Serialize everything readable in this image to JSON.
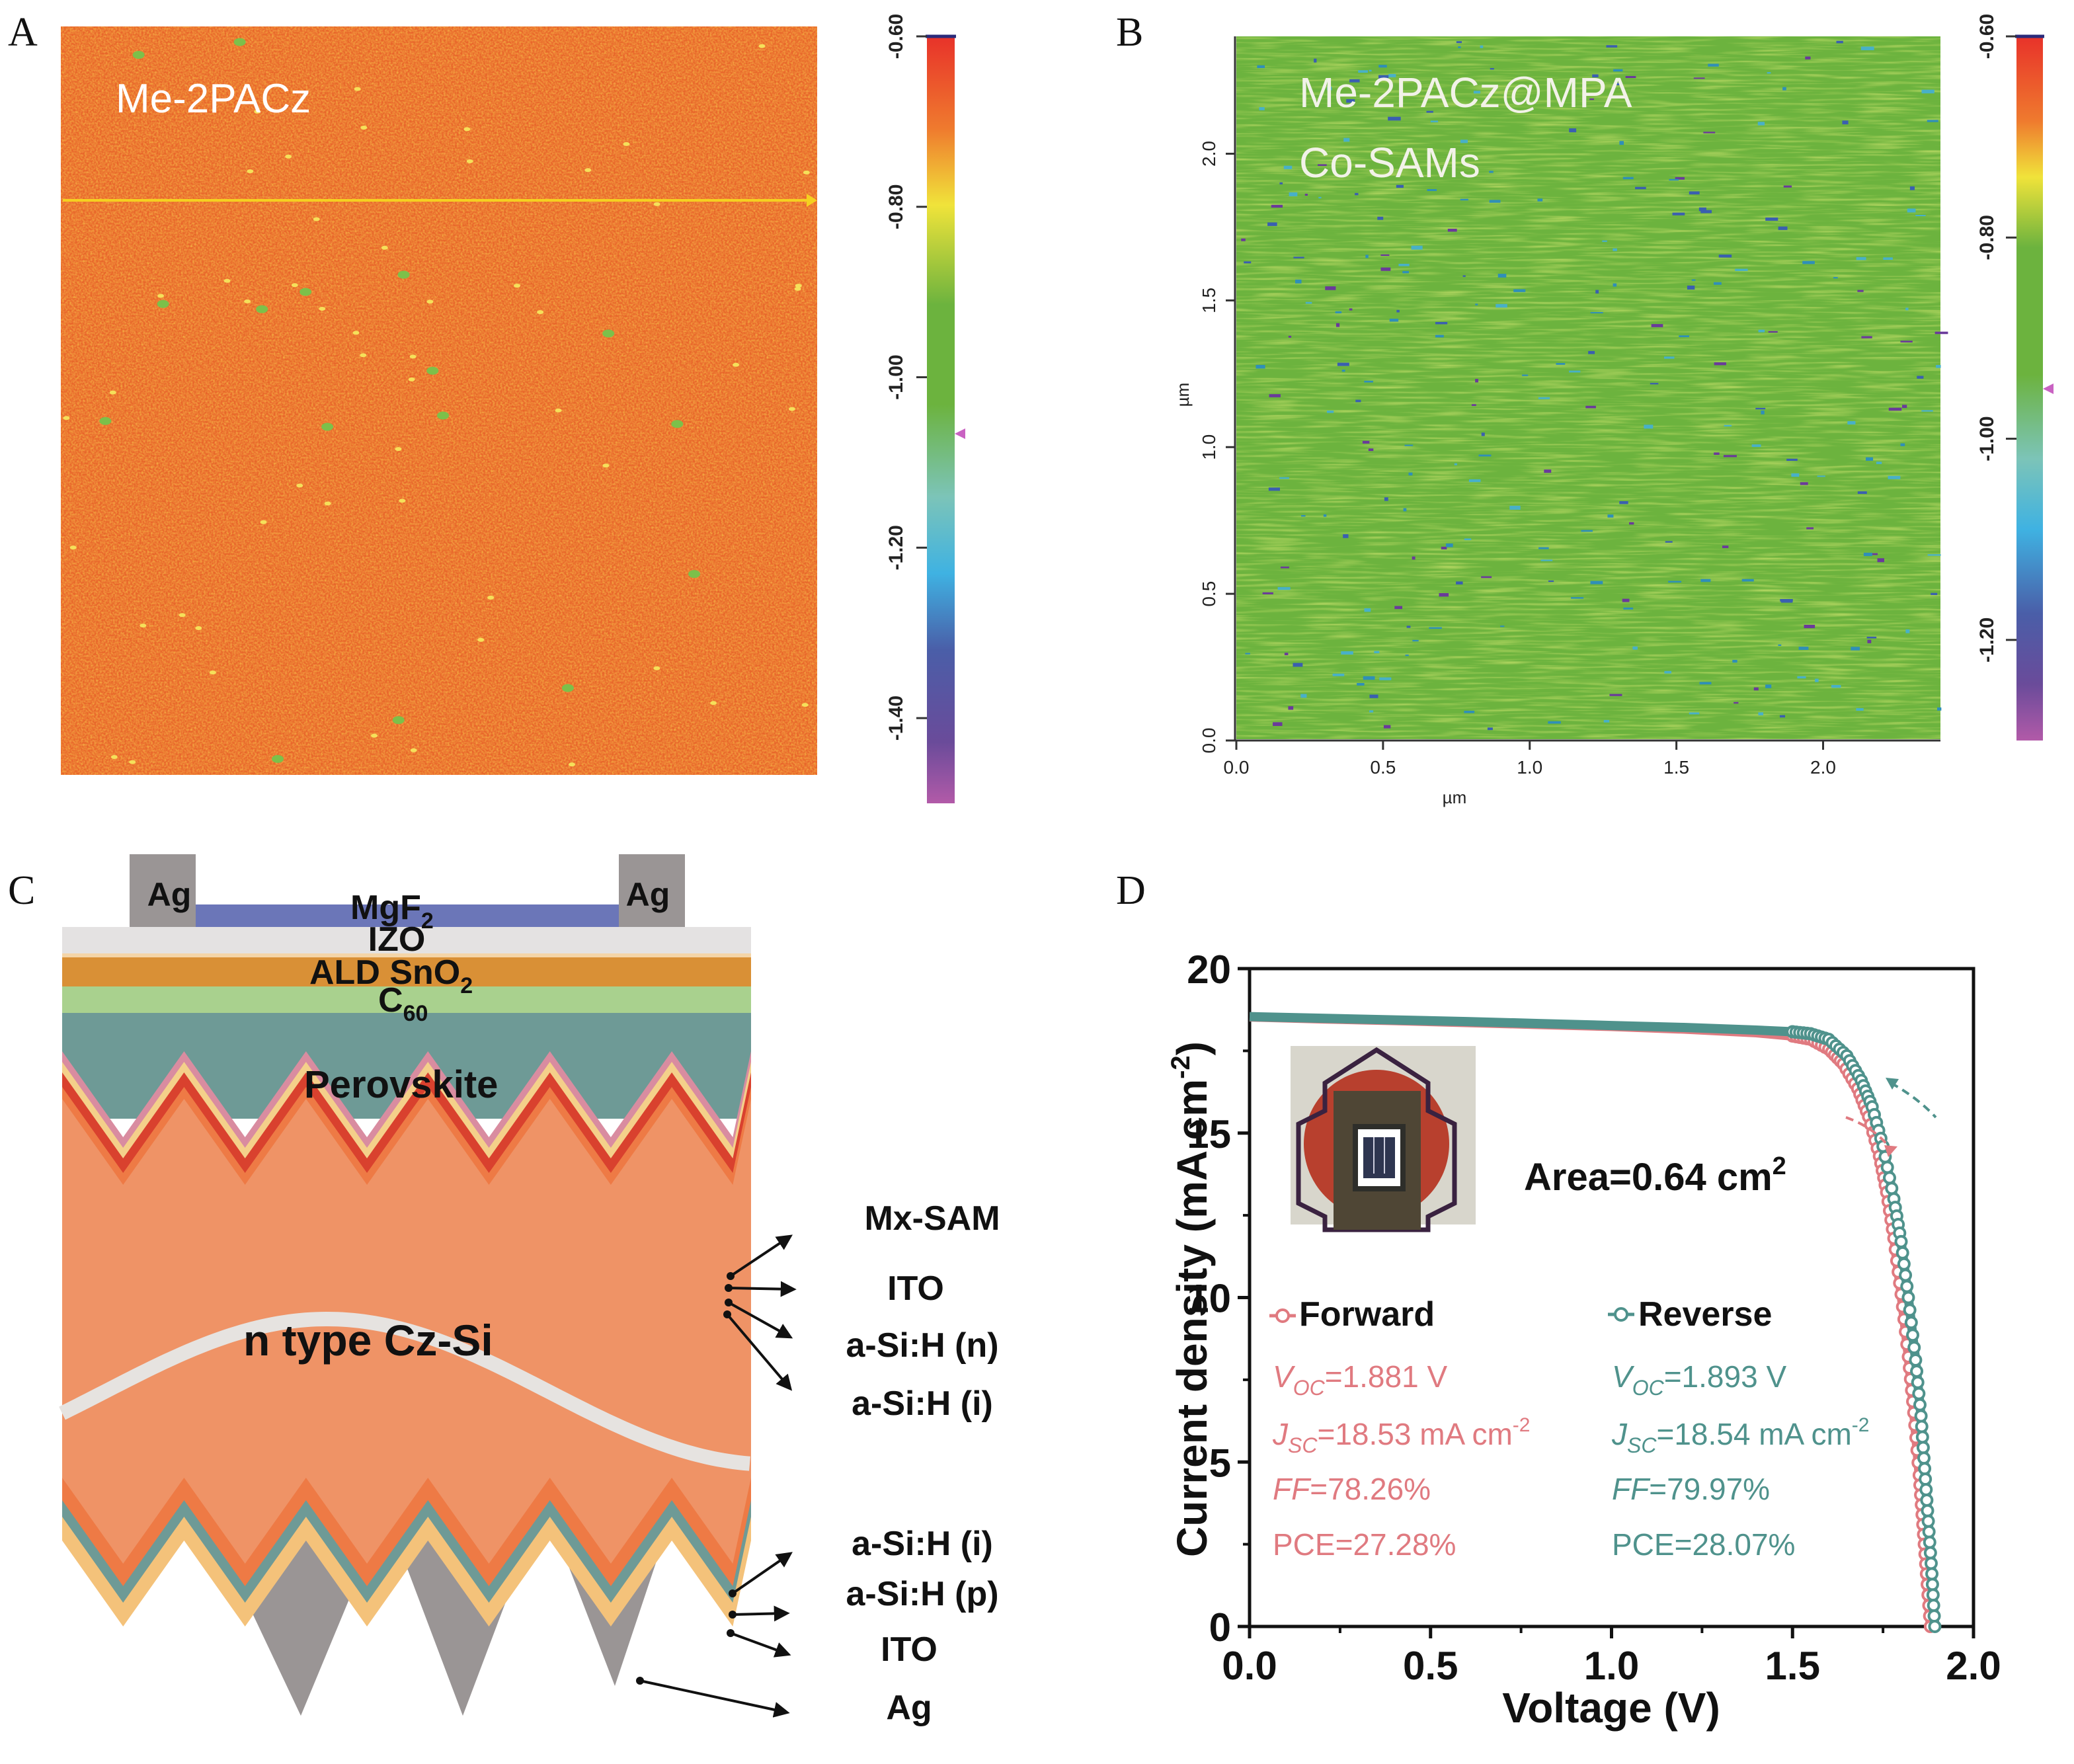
{
  "figure": {
    "panels": [
      {
        "id": "A",
        "type": "afm-potential-map",
        "label": "A",
        "sample_label": "Me-2PACz",
        "dominant_color": "#e8652a",
        "colorbar": {
          "ticks": [
            "-0.60",
            "-0.80",
            "-1.00",
            "-1.20",
            "-1.40"
          ],
          "range": [
            -0.6,
            -1.5
          ],
          "marker_value": -1.05,
          "marker_color": "#c962c2"
        },
        "line_profile_color": "#f5d020"
      },
      {
        "id": "B",
        "type": "afm-potential-map",
        "label": "B",
        "sample_label_line1": "Me-2PACz@MPA",
        "sample_label_line2": "Co-SAMs",
        "dominant_color": "#6cb33e",
        "x_axis": {
          "label": "µm",
          "ticks": [
            "0.0",
            "0.5",
            "1.0",
            "1.5",
            "2.0"
          ],
          "range": [
            0,
            2.4
          ]
        },
        "y_axis": {
          "label": "µm",
          "ticks": [
            "0.0",
            "0.5",
            "1.0",
            "1.5",
            "2.0"
          ],
          "range": [
            0,
            2.4
          ]
        },
        "colorbar": {
          "ticks": [
            "-0.60",
            "-0.80",
            "-1.00",
            "-1.20"
          ],
          "range": [
            -0.6,
            -1.3
          ],
          "marker_value": -0.95,
          "marker_color": "#c962c2"
        }
      },
      {
        "id": "C",
        "type": "device-schematic",
        "label": "C",
        "top_layers": {
          "ag_left": "Ag",
          "ag_right": "Ag",
          "mgf2": "MgF",
          "mgf2_sub": "2",
          "izo": "IZO",
          "sno2": "ALD SnO",
          "sno2_sub": "2",
          "c60": "C",
          "c60_sub": "60",
          "perovskite": "Perovskite",
          "silicon": "n type Cz-Si"
        },
        "front_callouts": [
          "Mx-SAM",
          "ITO",
          "a-Si:H (n)",
          "a-Si:H (i)"
        ],
        "rear_callouts": [
          "a-Si:H (i)",
          "a-Si:H (p)",
          "ITO",
          "Ag"
        ],
        "colors": {
          "ag": "#9a9595",
          "mgf2": "#6b76b8",
          "izo": "#e4e2e2",
          "sno2": "#d99036",
          "c60": "#a9d18e",
          "perovskite": "#6e9a96",
          "mx_sam": "#d98ca0",
          "ito_front": "#f4d08a",
          "asi_n": "#d9412e",
          "asi_i": "#ee7a45",
          "silicon": "#ef9366",
          "wave": "#e6e3e0",
          "asi_p": "#6e9a96",
          "ito_rear": "#f4c27a"
        }
      },
      {
        "id": "D",
        "type": "jv-curve",
        "label": "D",
        "area_label": "Area=0.64 cm",
        "area_sup": "2",
        "legend": {
          "forward": "Forward",
          "reverse": "Reverse"
        },
        "forward_params": {
          "voc_sym": "V",
          "voc_sub": "OC",
          "voc_val": "=1.881 V",
          "jsc_sym": "J",
          "jsc_sub": "SC",
          "jsc_val": "=18.53 mA cm",
          "jsc_sup": "-2",
          "ff": "FF",
          "ff_val": "=78.26%",
          "pce": "PCE=27.28%"
        },
        "reverse_params": {
          "voc_sym": "V",
          "voc_sub": "OC",
          "voc_val": "=1.893 V",
          "jsc_sym": "J",
          "jsc_sub": "SC",
          "jsc_val": "=18.54 mA cm",
          "jsc_sup": "-2",
          "ff": "FF",
          "ff_val": "=79.97%",
          "pce": "PCE=28.07%"
        }
      }
    ]
  },
  "chart_data": {
    "type": "line",
    "title": "",
    "xlabel": "Voltage (V)",
    "ylabel": "Current density (mA cm",
    "ylabel_sup": "-2",
    "ylabel_close": ")",
    "xlim": [
      0,
      2.0
    ],
    "ylim": [
      0,
      20
    ],
    "x_ticks": [
      "0.0",
      "0.5",
      "1.0",
      "1.5",
      "2.0"
    ],
    "y_ticks": [
      "0",
      "5",
      "10",
      "15",
      "20"
    ],
    "grid": false,
    "legend_position": "center-left",
    "series": [
      {
        "name": "Forward",
        "color": "#e07a80",
        "marker": "open-circle",
        "x": [
          0.0,
          0.2,
          0.4,
          0.6,
          0.8,
          1.0,
          1.2,
          1.4,
          1.5,
          1.55,
          1.6,
          1.64,
          1.68,
          1.71,
          1.74,
          1.76,
          1.78,
          1.8,
          1.82,
          1.835,
          1.85,
          1.86,
          1.87,
          1.881
        ],
        "y": [
          18.53,
          18.47,
          18.42,
          18.36,
          18.3,
          18.24,
          18.16,
          18.05,
          17.95,
          17.85,
          17.55,
          17.1,
          16.35,
          15.5,
          14.3,
          13.2,
          11.8,
          10.1,
          8.2,
          6.5,
          4.6,
          3.1,
          1.6,
          0.0
        ]
      },
      {
        "name": "Reverse",
        "color": "#4f928c",
        "marker": "open-circle",
        "x": [
          0.0,
          0.2,
          0.4,
          0.6,
          0.8,
          1.0,
          1.2,
          1.4,
          1.5,
          1.55,
          1.6,
          1.65,
          1.69,
          1.72,
          1.75,
          1.78,
          1.8,
          1.82,
          1.84,
          1.855,
          1.865,
          1.875,
          1.885,
          1.893
        ],
        "y": [
          18.54,
          18.49,
          18.44,
          18.39,
          18.33,
          18.27,
          18.21,
          18.13,
          18.08,
          18.02,
          17.85,
          17.35,
          16.6,
          15.8,
          14.6,
          13.0,
          11.7,
          10.0,
          8.1,
          6.4,
          4.8,
          3.2,
          1.6,
          0.0
        ]
      }
    ],
    "annotations": [
      "Area=0.64 cm^2",
      "Forward: Voc=1.881 V, Jsc=18.53 mA cm^-2, FF=78.26%, PCE=27.28%",
      "Reverse: Voc=1.893 V, Jsc=18.54 mA cm^-2, FF=79.97%, PCE=28.07%"
    ]
  }
}
